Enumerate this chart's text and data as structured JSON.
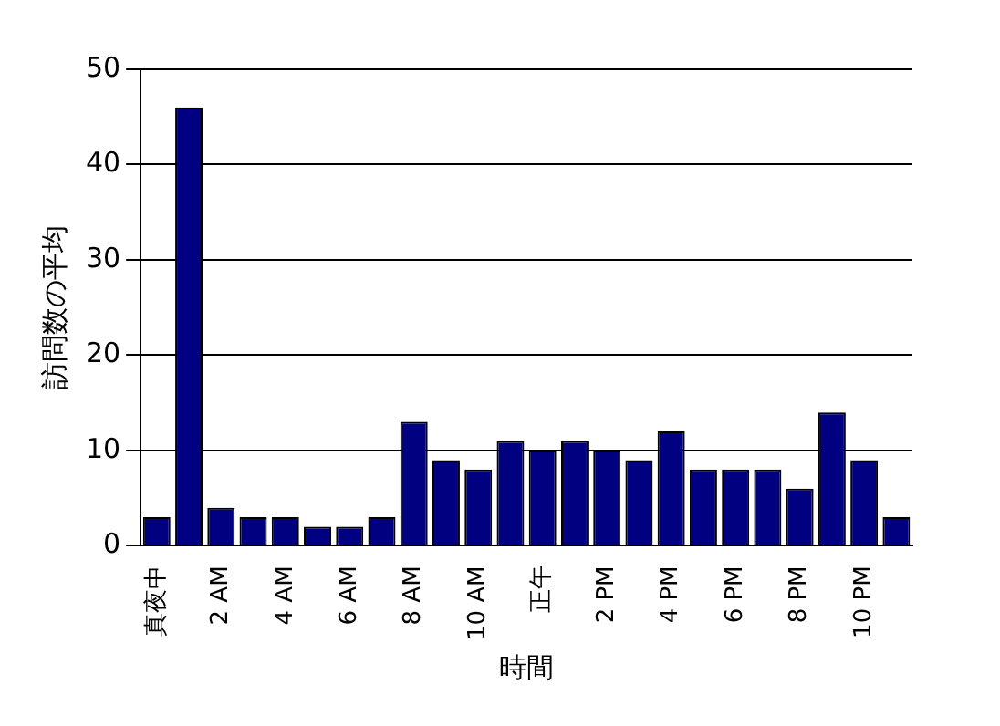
{
  "chart_data": {
    "type": "bar",
    "xlabel": "時間",
    "ylabel": "訪問数の平均",
    "categories": [
      "真夜中",
      null,
      "2 AM",
      null,
      "4 AM",
      null,
      "6 AM",
      null,
      "8 AM",
      null,
      "10 AM",
      null,
      "正午",
      null,
      "2 PM",
      null,
      "4 PM",
      null,
      "6 PM",
      null,
      "8 PM",
      null,
      "10 PM",
      null
    ],
    "values": [
      3,
      46,
      4,
      3,
      3,
      2,
      2,
      3,
      13,
      9,
      8,
      11,
      10,
      11,
      10,
      9,
      12,
      8,
      8,
      8,
      6,
      14,
      9,
      3
    ],
    "color": "#000080",
    "ylim": [
      0,
      50
    ],
    "yticks": [
      0,
      10,
      20,
      30,
      40,
      50
    ],
    "grid": "y",
    "legend": false
  }
}
